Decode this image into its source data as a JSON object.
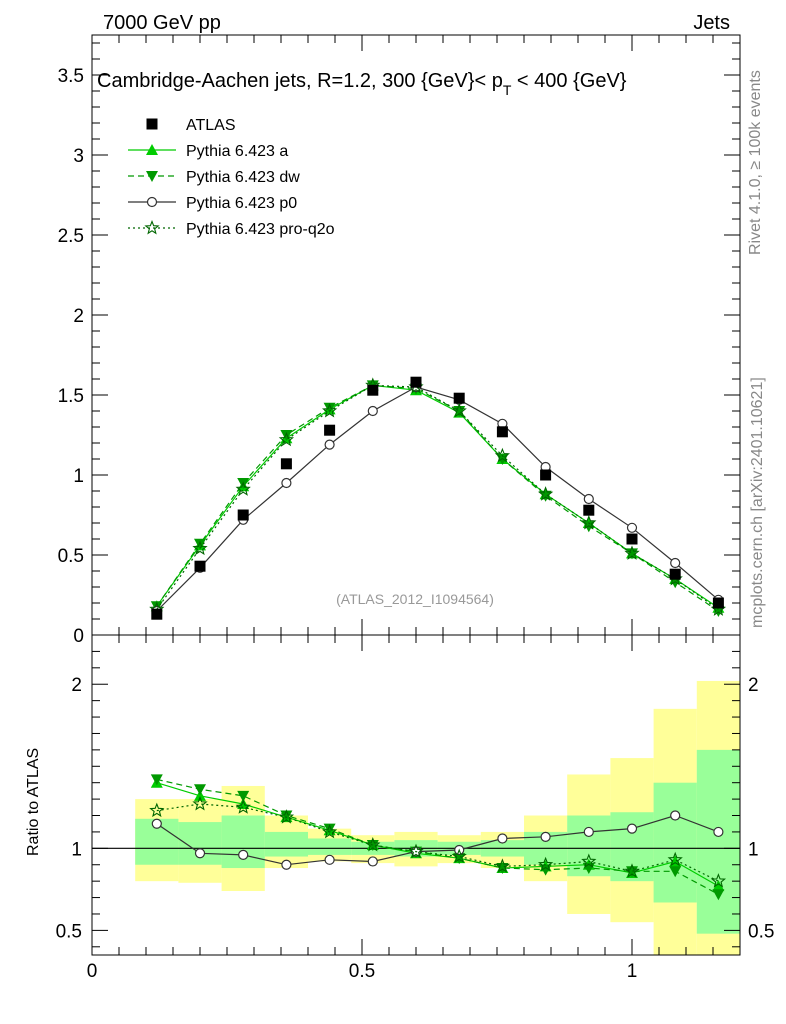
{
  "header": {
    "left": "7000 GeV pp",
    "right": "Jets"
  },
  "side_labels": {
    "rivet": "Rivet 4.1.0, ≥ 100k events",
    "mcplots": "mcplots.cern.ch [arXiv:2401.10621]"
  },
  "colors": {
    "atlas": "#000000",
    "pythia_a": "#00cc00",
    "pythia_dw": "#009900",
    "pythia_p0": "#333333",
    "pythia_proq2o": "#006600",
    "band_yellow": "#ffff99",
    "band_green": "#99ff99"
  },
  "chart_data": [
    {
      "type": "scatter",
      "title": "Cambridge-Aachen jets, R=1.2,  300 {GeV}< p_T < 400 {GeV}",
      "title_main": "Cambridge-Aachen jets, R=1.2,  300 {GeV}< p",
      "title_sub": "T",
      "title_end": " < 400 {GeV}",
      "watermark": "(ATLAS_2012_I1094564)",
      "xlim": [
        0,
        1.2
      ],
      "ylim": [
        0,
        3.75
      ],
      "yticks": [
        "0",
        "0.5",
        "1",
        "1.5",
        "2",
        "2.5",
        "3",
        "3.5"
      ],
      "legend_position": "top-left",
      "x": [
        0.12,
        0.2,
        0.28,
        0.36,
        0.44,
        0.52,
        0.6,
        0.68,
        0.76,
        0.84,
        0.92,
        1.0,
        1.08,
        1.16
      ],
      "series": [
        {
          "name": "ATLAS",
          "marker": "square",
          "values": [
            0.13,
            0.43,
            0.75,
            1.07,
            1.28,
            1.53,
            1.58,
            1.48,
            1.27,
            1.0,
            0.78,
            0.6,
            0.38,
            0.2
          ]
        },
        {
          "name": "Pythia 6.423 a",
          "marker": "triangle-up",
          "values": [
            0.18,
            0.56,
            0.93,
            1.23,
            1.41,
            1.56,
            1.53,
            1.39,
            1.1,
            0.88,
            0.7,
            0.51,
            0.35,
            0.17
          ]
        },
        {
          "name": "Pythia 6.423 dw",
          "marker": "triangle-down",
          "values": [
            0.18,
            0.57,
            0.95,
            1.25,
            1.42,
            1.56,
            1.54,
            1.4,
            1.1,
            0.87,
            0.68,
            0.51,
            0.33,
            0.15
          ]
        },
        {
          "name": "Pythia 6.423 p0",
          "marker": "circle-open",
          "values": [
            0.15,
            0.42,
            0.72,
            0.95,
            1.19,
            1.4,
            1.55,
            1.47,
            1.32,
            1.05,
            0.85,
            0.67,
            0.45,
            0.22
          ]
        },
        {
          "name": "Pythia 6.423 pro-q2o",
          "marker": "star-open",
          "values": [
            0.16,
            0.54,
            0.91,
            1.22,
            1.4,
            1.56,
            1.55,
            1.4,
            1.12,
            0.88,
            0.7,
            0.51,
            0.35,
            0.16
          ]
        }
      ]
    },
    {
      "type": "scatter",
      "ylabel": "Ratio to ATLAS",
      "xlim": [
        0,
        1.2
      ],
      "ylim": [
        0.35,
        2.3
      ],
      "xticks": [
        "0",
        "0.5",
        "1"
      ],
      "yticks": [
        "0.5",
        "1",
        "2"
      ],
      "x": [
        0.12,
        0.2,
        0.28,
        0.36,
        0.44,
        0.52,
        0.6,
        0.68,
        0.76,
        0.84,
        0.92,
        1.0,
        1.08,
        1.16
      ],
      "bin_edges": [
        0.08,
        0.16,
        0.24,
        0.32,
        0.4,
        0.48,
        0.56,
        0.64,
        0.72,
        0.8,
        0.88,
        0.96,
        1.04,
        1.12,
        1.2
      ],
      "band_yellow": [
        [
          0.8,
          1.3
        ],
        [
          0.79,
          1.3
        ],
        [
          0.74,
          1.38
        ],
        [
          0.88,
          1.2
        ],
        [
          0.92,
          1.12
        ],
        [
          0.91,
          1.08
        ],
        [
          0.89,
          1.1
        ],
        [
          0.91,
          1.08
        ],
        [
          0.88,
          1.1
        ],
        [
          0.8,
          1.2
        ],
        [
          0.6,
          1.45
        ],
        [
          0.55,
          1.55
        ],
        [
          0.35,
          1.85
        ],
        [
          0.35,
          2.02
        ]
      ],
      "band_green": [
        [
          0.9,
          1.18
        ],
        [
          0.9,
          1.16
        ],
        [
          0.88,
          1.2
        ],
        [
          0.95,
          1.1
        ],
        [
          0.96,
          1.06
        ],
        [
          0.96,
          1.04
        ],
        [
          0.95,
          1.05
        ],
        [
          0.96,
          1.04
        ],
        [
          0.95,
          1.05
        ],
        [
          0.9,
          1.1
        ],
        [
          0.83,
          1.2
        ],
        [
          0.8,
          1.22
        ],
        [
          0.67,
          1.4
        ],
        [
          0.48,
          1.6
        ]
      ],
      "series": [
        {
          "name": "Pythia 6.423 a",
          "marker": "triangle-up",
          "values": [
            1.4,
            1.32,
            1.27,
            1.19,
            1.11,
            1.02,
            0.97,
            0.94,
            0.88,
            0.89,
            0.9,
            0.85,
            0.92,
            0.77
          ]
        },
        {
          "name": "Pythia 6.423 dw",
          "marker": "triangle-down",
          "values": [
            1.42,
            1.36,
            1.32,
            1.2,
            1.12,
            1.02,
            0.98,
            0.94,
            0.88,
            0.87,
            0.88,
            0.86,
            0.86,
            0.72
          ]
        },
        {
          "name": "Pythia 6.423 p0",
          "marker": "circle-open",
          "values": [
            1.15,
            0.97,
            0.96,
            0.9,
            0.93,
            0.92,
            0.98,
            0.99,
            1.06,
            1.07,
            1.1,
            1.12,
            1.2,
            1.1
          ]
        },
        {
          "name": "Pythia 6.423 pro-q2o",
          "marker": "star-open",
          "values": [
            1.23,
            1.27,
            1.25,
            1.19,
            1.1,
            1.02,
            0.98,
            0.95,
            0.89,
            0.9,
            0.92,
            0.86,
            0.93,
            0.8
          ]
        }
      ]
    }
  ]
}
